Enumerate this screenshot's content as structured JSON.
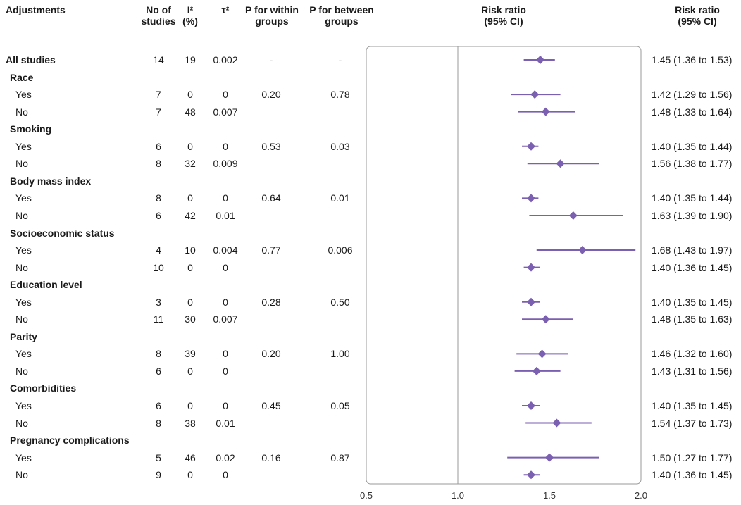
{
  "header": {
    "adjustments": "Adjustments",
    "n_studies_l1": "No of",
    "n_studies_l2": "studies",
    "i2_l1": "I²",
    "i2_l2": "(%)",
    "tau2": "τ²",
    "p_within_l1": "P for within",
    "p_within_l2": "groups",
    "p_between_l1": "P for between",
    "p_between_l2": "groups",
    "rr_plot_l1": "Risk ratio",
    "rr_plot_l2": "(95% CI)",
    "rr_text_l1": "Risk ratio",
    "rr_text_l2": "(95% CI)"
  },
  "rows": [
    {
      "label": "All studies",
      "kind": "overall",
      "n": "14",
      "i2": "19",
      "tau2": "0.002",
      "p_within": "-",
      "p_between": "-",
      "ci_text": "1.45 (1.36 to 1.53)"
    },
    {
      "label": "Race",
      "kind": "group"
    },
    {
      "label": "Yes",
      "kind": "sub",
      "n": "7",
      "i2": "0",
      "tau2": "0",
      "p_within": "0.20",
      "p_between": "0.78",
      "ci_text": "1.42 (1.29 to 1.56)"
    },
    {
      "label": "No",
      "kind": "sub",
      "n": "7",
      "i2": "48",
      "tau2": "0.007",
      "p_within": "",
      "p_between": "",
      "ci_text": "1.48 (1.33 to 1.64)"
    },
    {
      "label": "Smoking",
      "kind": "group"
    },
    {
      "label": "Yes",
      "kind": "sub",
      "n": "6",
      "i2": "0",
      "tau2": "0",
      "p_within": "0.53",
      "p_between": "0.03",
      "ci_text": "1.40 (1.35 to 1.44)"
    },
    {
      "label": "No",
      "kind": "sub",
      "n": "8",
      "i2": "32",
      "tau2": "0.009",
      "p_within": "",
      "p_between": "",
      "ci_text": "1.56 (1.38 to 1.77)"
    },
    {
      "label": "Body mass index",
      "kind": "group"
    },
    {
      "label": "Yes",
      "kind": "sub",
      "n": "8",
      "i2": "0",
      "tau2": "0",
      "p_within": "0.64",
      "p_between": "0.01",
      "ci_text": "1.40 (1.35 to 1.44)"
    },
    {
      "label": "No",
      "kind": "sub",
      "n": "6",
      "i2": "42",
      "tau2": "0.01",
      "p_within": "",
      "p_between": "",
      "ci_text": "1.63 (1.39 to 1.90)"
    },
    {
      "label": "Socioeconomic status",
      "kind": "group"
    },
    {
      "label": "Yes",
      "kind": "sub",
      "n": "4",
      "i2": "10",
      "tau2": "0.004",
      "p_within": "0.77",
      "p_between": "0.006",
      "ci_text": "1.68 (1.43 to 1.97)"
    },
    {
      "label": "No",
      "kind": "sub",
      "n": "10",
      "i2": "0",
      "tau2": "0",
      "p_within": "",
      "p_between": "",
      "ci_text": "1.40 (1.36 to 1.45)"
    },
    {
      "label": "Education level",
      "kind": "group"
    },
    {
      "label": "Yes",
      "kind": "sub",
      "n": "3",
      "i2": "0",
      "tau2": "0",
      "p_within": "0.28",
      "p_between": "0.50",
      "ci_text": "1.40 (1.35 to 1.45)"
    },
    {
      "label": "No",
      "kind": "sub",
      "n": "11",
      "i2": "30",
      "tau2": "0.007",
      "p_within": "",
      "p_between": "",
      "ci_text": "1.48 (1.35 to 1.63)"
    },
    {
      "label": "Parity",
      "kind": "group"
    },
    {
      "label": "Yes",
      "kind": "sub",
      "n": "8",
      "i2": "39",
      "tau2": "0",
      "p_within": "0.20",
      "p_between": "1.00",
      "ci_text": "1.46 (1.32 to 1.60)"
    },
    {
      "label": "No",
      "kind": "sub",
      "n": "6",
      "i2": "0",
      "tau2": "0",
      "p_within": "",
      "p_between": "",
      "ci_text": "1.43 (1.31 to 1.56)"
    },
    {
      "label": "Comorbidities",
      "kind": "group"
    },
    {
      "label": "Yes",
      "kind": "sub",
      "n": "6",
      "i2": "0",
      "tau2": "0",
      "p_within": "0.45",
      "p_between": "0.05",
      "ci_text": "1.40 (1.35 to 1.45)"
    },
    {
      "label": "No",
      "kind": "sub",
      "n": "8",
      "i2": "38",
      "tau2": "0.01",
      "p_within": "",
      "p_between": "",
      "ci_text": "1.54 (1.37 to 1.73)"
    },
    {
      "label": "Pregnancy complications",
      "kind": "group"
    },
    {
      "label": "Yes",
      "kind": "sub",
      "n": "5",
      "i2": "46",
      "tau2": "0.02",
      "p_within": "0.16",
      "p_between": "0.87",
      "ci_text": "1.50 (1.27 to 1.77)"
    },
    {
      "label": "No",
      "kind": "sub",
      "n": "9",
      "i2": "0",
      "tau2": "0",
      "p_within": "",
      "p_between": "",
      "ci_text": "1.40 (1.36 to 1.45)"
    }
  ],
  "chart_data": {
    "type": "scatter",
    "subtype": "forest",
    "xlabel": "",
    "ylabel": "",
    "xlim": [
      0.5,
      2.0
    ],
    "xticks": [
      "0.5",
      "1.0",
      "1.5",
      "2.0"
    ],
    "reference_line": 1.0,
    "grid": false,
    "marker_color": "#7b5fb0",
    "line_color": "#7b5fb0",
    "points": [
      {
        "label": "All studies",
        "est": 1.45,
        "lo": 1.36,
        "hi": 1.53
      },
      {
        "label": "Race: Yes",
        "est": 1.42,
        "lo": 1.29,
        "hi": 1.56
      },
      {
        "label": "Race: No",
        "est": 1.48,
        "lo": 1.33,
        "hi": 1.64
      },
      {
        "label": "Smoking: Yes",
        "est": 1.4,
        "lo": 1.35,
        "hi": 1.44
      },
      {
        "label": "Smoking: No",
        "est": 1.56,
        "lo": 1.38,
        "hi": 1.77
      },
      {
        "label": "Body mass index: Yes",
        "est": 1.4,
        "lo": 1.35,
        "hi": 1.44
      },
      {
        "label": "Body mass index: No",
        "est": 1.63,
        "lo": 1.39,
        "hi": 1.9
      },
      {
        "label": "Socioeconomic status: Yes",
        "est": 1.68,
        "lo": 1.43,
        "hi": 1.97
      },
      {
        "label": "Socioeconomic status: No",
        "est": 1.4,
        "lo": 1.36,
        "hi": 1.45
      },
      {
        "label": "Education level: Yes",
        "est": 1.4,
        "lo": 1.35,
        "hi": 1.45
      },
      {
        "label": "Education level: No",
        "est": 1.48,
        "lo": 1.35,
        "hi": 1.63
      },
      {
        "label": "Parity: Yes",
        "est": 1.46,
        "lo": 1.32,
        "hi": 1.6
      },
      {
        "label": "Parity: No",
        "est": 1.43,
        "lo": 1.31,
        "hi": 1.56
      },
      {
        "label": "Comorbidities: Yes",
        "est": 1.4,
        "lo": 1.35,
        "hi": 1.45
      },
      {
        "label": "Comorbidities: No",
        "est": 1.54,
        "lo": 1.37,
        "hi": 1.73
      },
      {
        "label": "Pregnancy complications: Yes",
        "est": 1.5,
        "lo": 1.27,
        "hi": 1.77
      },
      {
        "label": "Pregnancy complications: No",
        "est": 1.4,
        "lo": 1.36,
        "hi": 1.45
      }
    ]
  }
}
